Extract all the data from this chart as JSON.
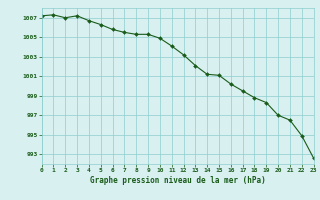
{
  "hours": [
    0,
    1,
    2,
    3,
    4,
    5,
    6,
    7,
    8,
    9,
    10,
    11,
    12,
    13,
    14,
    15,
    16,
    17,
    18,
    19,
    20,
    21,
    22,
    23
  ],
  "pressure": [
    1007.2,
    1007.3,
    1007.0,
    1007.2,
    1006.7,
    1006.3,
    1005.8,
    1005.5,
    1005.3,
    1005.3,
    1004.9,
    1004.1,
    1003.2,
    1002.1,
    1001.2,
    1001.1,
    1000.2,
    999.5,
    998.8,
    998.3,
    997.0,
    996.5,
    994.9,
    992.6
  ],
  "bg_color": "#d8f0f0",
  "line_color": "#1a5c1a",
  "marker_color": "#1a5c1a",
  "grid_color": "#8ecece",
  "xlabel": "Graphe pression niveau de la mer (hPa)",
  "xlabel_color": "#1a5c1a",
  "tick_color": "#1a5c1a",
  "ylim": [
    992.0,
    1008.0
  ],
  "yticks": [
    993,
    995,
    997,
    999,
    1001,
    1003,
    1005,
    1007
  ],
  "xlim": [
    0,
    23
  ],
  "xticks": [
    0,
    1,
    2,
    3,
    4,
    5,
    6,
    7,
    8,
    9,
    10,
    11,
    12,
    13,
    14,
    15,
    16,
    17,
    18,
    19,
    20,
    21,
    22,
    23
  ],
  "figsize": [
    3.2,
    2.0
  ],
  "dpi": 100
}
